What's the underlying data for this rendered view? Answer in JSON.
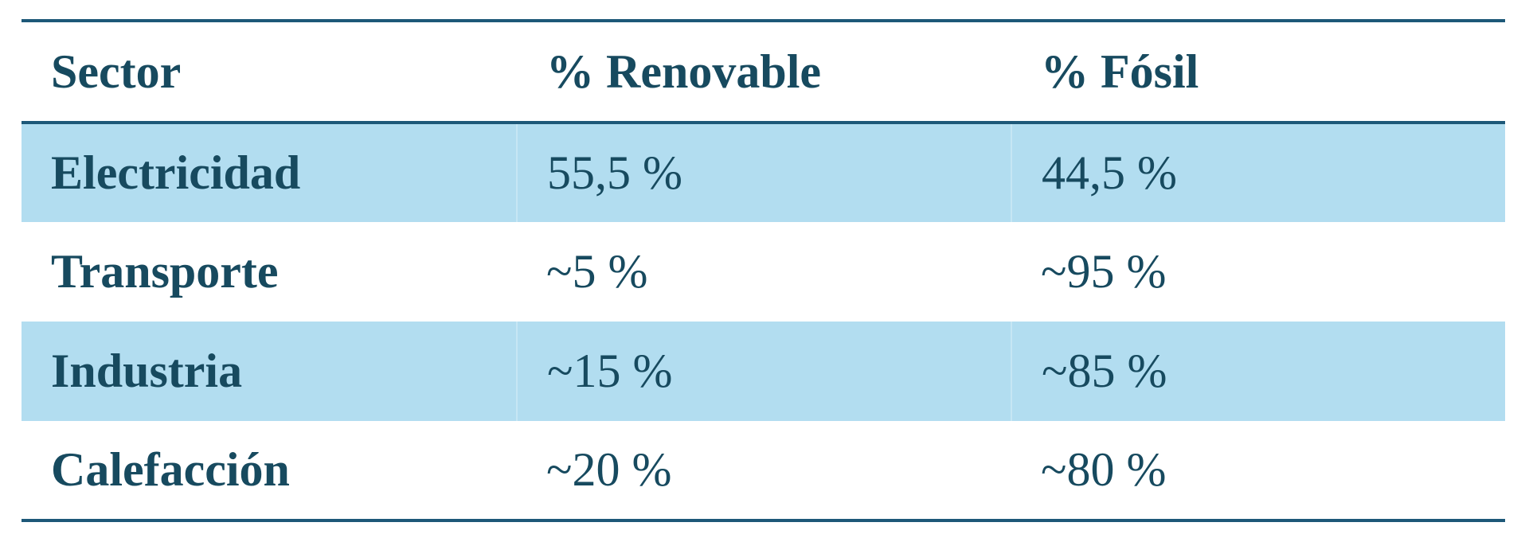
{
  "table": {
    "header": [
      "Sector",
      "% Renovable",
      "% Fósil"
    ],
    "rows": [
      [
        "Electricidad",
        "55,5 %",
        "44,5 %"
      ],
      [
        "Transporte",
        "~5 %",
        "~95 %"
      ],
      [
        "Industria",
        "~15 %",
        "~85 %"
      ],
      [
        "Calefacción",
        "~20 %",
        "~80 %"
      ]
    ]
  }
}
